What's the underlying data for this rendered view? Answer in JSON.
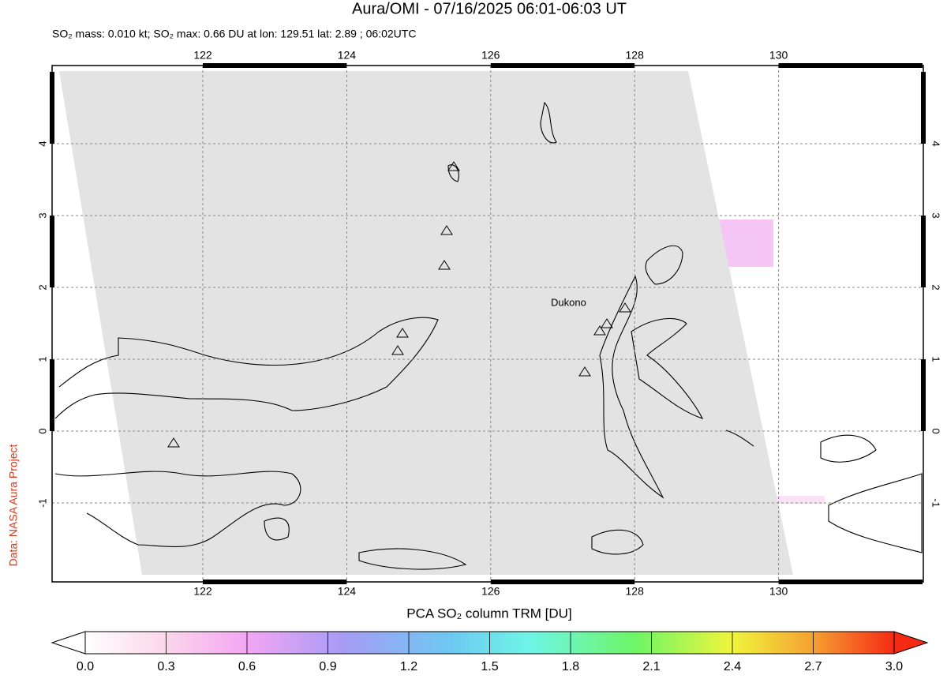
{
  "header": {
    "title": "Aura/OMI - 07/16/2025 06:01-06:03 UT",
    "subtitle": "SO₂ mass: 0.010 kt; SO₂ max: 0.66 DU at lon: 129.51 lat: 2.89 ; 06:02UTC"
  },
  "map": {
    "lon_ticks": [
      122,
      124,
      126,
      128,
      130
    ],
    "lat_ticks": [
      -1,
      0,
      1,
      2,
      3,
      4
    ],
    "volcano_label": "Dukono",
    "credit": "Data: NASA Aura Project"
  },
  "colorbar": {
    "label": "PCA SO₂ column TRM [DU]",
    "ticks": [
      {
        "value": 0,
        "label": "0.0"
      },
      {
        "value": 0.3,
        "label": "0.3"
      },
      {
        "value": 0.6,
        "label": "0.6"
      },
      {
        "value": 0.9,
        "label": "0.9"
      },
      {
        "value": 1.2,
        "label": "1.2"
      },
      {
        "value": 1.5,
        "label": "1.5"
      },
      {
        "value": 1.8,
        "label": "1.8"
      },
      {
        "value": 2.1,
        "label": "2.1"
      },
      {
        "value": 2.4,
        "label": "2.4"
      },
      {
        "value": 2.7,
        "label": "2.7"
      },
      {
        "value": 3,
        "label": "3.0"
      }
    ]
  }
}
